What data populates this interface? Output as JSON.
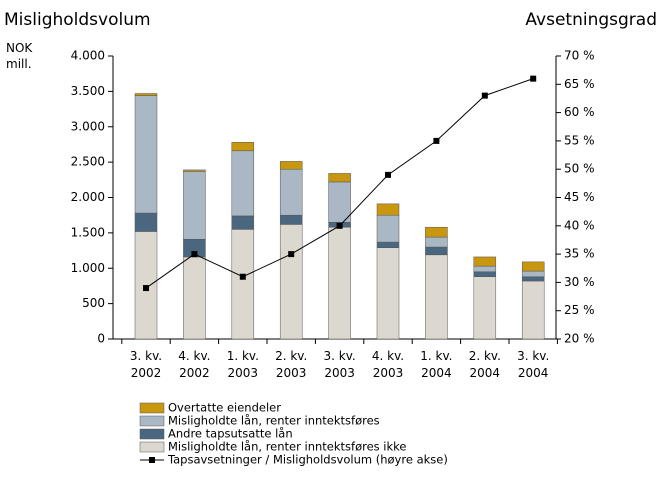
{
  "chart_data": {
    "type": "bar",
    "title": "Misligholdsvolum",
    "y2_title": "Avsetningsgrad",
    "ylabel": "NOK mill.",
    "categories": [
      "3. kv. 2002",
      "4. kv. 2002",
      "1. kv. 2003",
      "2. kv. 2003",
      "3. kv. 2003",
      "4. kv. 2003",
      "1. kv. 2004",
      "2. kv. 2004",
      "3. kv. 2004"
    ],
    "series": [
      {
        "name": "Misligholdte lån, renter inntektsføres ikke",
        "color": "#dcd8cf",
        "values": [
          1520,
          1160,
          1550,
          1620,
          1580,
          1290,
          1190,
          880,
          820
        ]
      },
      {
        "name": "Andre tapsutsatte lån",
        "color": "#4b6780",
        "values": [
          260,
          250,
          190,
          130,
          70,
          80,
          110,
          70,
          60
        ]
      },
      {
        "name": "Misligholdte lån, renter inntektsføres",
        "color": "#a9b8c4",
        "values": [
          1660,
          960,
          920,
          650,
          570,
          380,
          140,
          80,
          80
        ]
      },
      {
        "name": "Overtatte eiendeler",
        "color": "#c9960f",
        "values": [
          30,
          20,
          120,
          110,
          120,
          160,
          140,
          130,
          130
        ]
      },
      {
        "name": "Tapsavsetninger / Misligholdsvolum (høyre akse)",
        "type": "line",
        "axis": "y2",
        "color": "#000000",
        "values": [
          29,
          35,
          31,
          35,
          40,
          49,
          55,
          63,
          66
        ]
      }
    ],
    "stacked": true,
    "ylim": [
      0,
      4000
    ],
    "yticks": [
      0,
      500,
      {
        "value": 1000,
        "label": "1.000"
      },
      {
        "value": 1500,
        "label": "1.500"
      },
      {
        "value": 2000,
        "label": "2.000"
      },
      {
        "value": 2500,
        "label": "2.500"
      },
      {
        "value": 3000,
        "label": "3.000"
      },
      {
        "value": 3500,
        "label": "3.500"
      },
      {
        "value": 4000,
        "label": "4.000"
      }
    ],
    "y2lim": [
      20,
      70
    ],
    "y2ticks": [
      {
        "value": 20,
        "label": "20 %"
      },
      {
        "value": 25,
        "label": "25 %"
      },
      {
        "value": 30,
        "label": "30 %"
      },
      {
        "value": 35,
        "label": "35 %"
      },
      {
        "value": 40,
        "label": "40 %"
      },
      {
        "value": 45,
        "label": "45 %"
      },
      {
        "value": 50,
        "label": "50 %"
      },
      {
        "value": 55,
        "label": "55 %"
      },
      {
        "value": 60,
        "label": "60 %"
      },
      {
        "value": 65,
        "label": "65 %"
      },
      {
        "value": 70,
        "label": "70 %"
      }
    ],
    "grid": false,
    "legend": "bottom-left"
  }
}
